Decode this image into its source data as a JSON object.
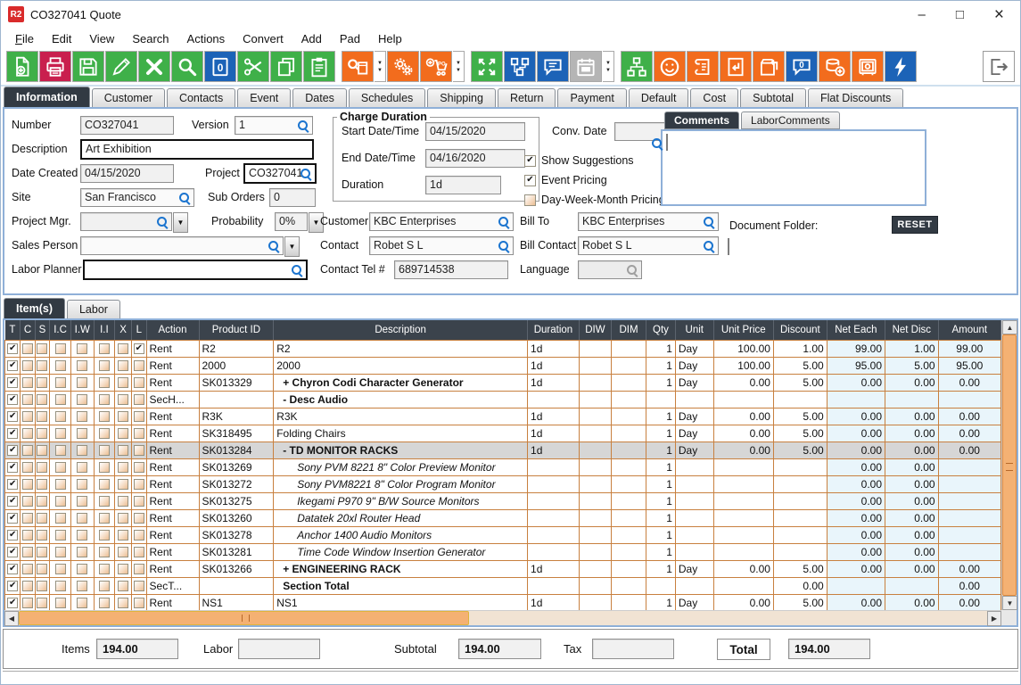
{
  "window": {
    "title": "CO327041 Quote",
    "logo": "R2",
    "controls": [
      "minimize",
      "maximize",
      "close"
    ]
  },
  "icons": {
    "dropdown": "▼",
    "up_arrow": "▲",
    "down_arrow": "▼",
    "left_arrow": "◀",
    "right_arrow": "▶",
    "check": "✔",
    "minimize": "–",
    "maximize": "□",
    "close": "×"
  },
  "menu_bar": {
    "items": [
      "File",
      "Edit",
      "View",
      "Search",
      "Actions",
      "Convert",
      "Add",
      "Pad",
      "Help"
    ]
  },
  "toolbar": {
    "buttons": [
      {
        "name": "new-document",
        "icon": "doc-new",
        "color": "#3fb049"
      },
      {
        "name": "print",
        "icon": "printer",
        "color": "#c91f4e"
      },
      {
        "name": "save",
        "icon": "floppy",
        "color": "#3fb049"
      },
      {
        "name": "edit",
        "icon": "pencil",
        "color": "#3fb049"
      },
      {
        "name": "delete",
        "icon": "x",
        "color": "#3fb049"
      },
      {
        "name": "search",
        "icon": "magnifier",
        "color": "#3fb049"
      },
      {
        "name": "copy-zero",
        "icon": "doc-zero",
        "color": "#1c63b7"
      },
      {
        "name": "cut",
        "icon": "scissors",
        "color": "#3fb049"
      },
      {
        "name": "copy",
        "icon": "copy",
        "color": "#3fb049"
      },
      {
        "name": "paste",
        "icon": "clipboard",
        "color": "#3fb049"
      },
      {
        "name": "search-items",
        "icon": "search-box",
        "color": "#f26c1d",
        "dropdown": true,
        "gap": true
      },
      {
        "name": "settings-gears",
        "icon": "gears",
        "color": "#f26c1d"
      },
      {
        "name": "add-purchase-order",
        "icon": "cart-po",
        "color": "#f26c1d",
        "dropdown": true
      },
      {
        "name": "expand",
        "icon": "expand",
        "color": "#3fb049",
        "gap": true
      },
      {
        "name": "workflow",
        "icon": "flowchart",
        "color": "#1c63b7"
      },
      {
        "name": "comments",
        "icon": "chat",
        "color": "#1c63b7"
      },
      {
        "name": "calendar",
        "icon": "calendar",
        "color": "#b5b5b5",
        "dropdown": true,
        "disabled": true
      },
      {
        "name": "org-tree",
        "icon": "tree",
        "color": "#3fb049",
        "gap": true
      },
      {
        "name": "customer-smiley",
        "icon": "smiley",
        "color": "#f26c1d"
      },
      {
        "name": "notes-scroll",
        "icon": "scroll",
        "color": "#f26c1d"
      },
      {
        "name": "return-note",
        "icon": "note-return",
        "color": "#f26c1d"
      },
      {
        "name": "return-box",
        "icon": "box-return",
        "color": "#f26c1d"
      },
      {
        "name": "chat-zero",
        "icon": "chat-zero",
        "color": "#1c63b7"
      },
      {
        "name": "add-currency",
        "icon": "coins",
        "color": "#f26c1d"
      },
      {
        "name": "vault",
        "icon": "safe",
        "color": "#f26c1d"
      },
      {
        "name": "flash",
        "icon": "lightning",
        "color": "#1c63b7"
      }
    ]
  },
  "main_tabs": {
    "active": "Information",
    "items": [
      "Information",
      "Customer",
      "Contacts",
      "Event",
      "Dates",
      "Schedules",
      "Shipping",
      "Return",
      "Payment",
      "Default",
      "Cost",
      "Subtotal",
      "Flat Discounts"
    ]
  },
  "form": {
    "number_label": "Number",
    "number": "CO327041",
    "version_label": "Version",
    "version": "1",
    "description_label": "Description",
    "description": "Art Exhibition",
    "date_created_label": "Date Created",
    "date_created": "04/15/2020",
    "project_label": "Project",
    "project": "CO327041",
    "site_label": "Site",
    "site": "San Francisco",
    "sub_orders_label": "Sub Orders",
    "sub_orders": "0",
    "project_mgr_label": "Project Mgr.",
    "project_mgr": "",
    "probability_label": "Probability",
    "probability": "0%",
    "sales_person_label": "Sales Person",
    "sales_person": "",
    "labor_planner_label": "Labor Planner",
    "labor_planner": "",
    "charge_duration_legend": "Charge Duration",
    "start_label": "Start Date/Time",
    "start": "04/15/2020",
    "end_label": "End Date/Time",
    "end": "04/16/2020",
    "duration_label": "Duration",
    "duration": "1d",
    "conv_date_label": "Conv. Date",
    "conv_date": "",
    "checkboxes": [
      {
        "label": "Show Suggestions",
        "checked": true
      },
      {
        "label": "Event Pricing",
        "checked": true
      },
      {
        "label": "Day-Week-Month Pricing",
        "checked": false
      }
    ],
    "customer_label": "Customer",
    "customer": "KBC Enterprises",
    "bill_to_label": "Bill To",
    "bill_to": "KBC Enterprises",
    "contact_label": "Contact",
    "contact": "Robet S L",
    "bill_contact_label": "Bill Contact",
    "bill_contact": "Robet S L",
    "contact_tel_label": "Contact Tel #",
    "contact_tel": "689714538",
    "language_label": "Language",
    "language": ""
  },
  "comments_panel": {
    "tabs": [
      "Comments",
      "LaborComments"
    ],
    "active": "Comments",
    "text": "",
    "document_folder_label": "Document Folder:",
    "reset_label": "RESET",
    "document_folder": ""
  },
  "items_panel": {
    "tabs": [
      "Item(s)",
      "Labor"
    ],
    "active": "Item(s)"
  },
  "table": {
    "check_columns": [
      "T",
      "C",
      "S",
      "I.C",
      "I.W",
      "I.I",
      "X",
      "L"
    ],
    "columns": [
      "Action",
      "Product ID",
      "Description",
      "Duration",
      "DIW",
      "DIM",
      "Qty",
      "Unit",
      "Unit Price",
      "Discount",
      "Net Each",
      "Net Disc",
      "Amount"
    ],
    "rows": [
      {
        "checks": [
          "T",
          "L"
        ],
        "action": "Rent",
        "product_id": "R2",
        "description": "R2",
        "style": "n",
        "indent": 0,
        "duration": "1d",
        "diw": "",
        "dim": "",
        "qty": "1",
        "unit": "Day",
        "unit_price": "100.00",
        "discount": "1.00",
        "net_each": "99.00",
        "net_disc": "1.00",
        "amount": "99.00",
        "selected": false
      },
      {
        "checks": [
          "T"
        ],
        "action": "Rent",
        "product_id": "2000",
        "description": "2000",
        "style": "n",
        "indent": 0,
        "duration": "1d",
        "diw": "",
        "dim": "",
        "qty": "1",
        "unit": "Day",
        "unit_price": "100.00",
        "discount": "5.00",
        "net_each": "95.00",
        "net_disc": "5.00",
        "amount": "95.00",
        "selected": false
      },
      {
        "checks": [
          "T"
        ],
        "action": "Rent",
        "product_id": "SK013329",
        "description": "+  Chyron Codi Character Generator",
        "style": "b",
        "indent": 1,
        "duration": "1d",
        "diw": "",
        "dim": "",
        "qty": "1",
        "unit": "Day",
        "unit_price": "0.00",
        "discount": "5.00",
        "net_each": "0.00",
        "net_disc": "0.00",
        "amount": "0.00",
        "selected": false
      },
      {
        "checks": [
          "T"
        ],
        "action": "SecH...",
        "product_id": "",
        "description": "-  Desc Audio",
        "style": "b",
        "indent": 1,
        "duration": "",
        "diw": "",
        "dim": "",
        "qty": "",
        "unit": "",
        "unit_price": "",
        "discount": "",
        "net_each": "",
        "net_disc": "",
        "amount": "",
        "selected": false
      },
      {
        "checks": [
          "T"
        ],
        "action": "Rent",
        "product_id": "R3K",
        "description": "R3K",
        "style": "n",
        "indent": 0,
        "duration": "1d",
        "diw": "",
        "dim": "",
        "qty": "1",
        "unit": "Day",
        "unit_price": "0.00",
        "discount": "5.00",
        "net_each": "0.00",
        "net_disc": "0.00",
        "amount": "0.00",
        "selected": false
      },
      {
        "checks": [
          "T"
        ],
        "action": "Rent",
        "product_id": "SK318495",
        "description": "Folding Chairs",
        "style": "n",
        "indent": 0,
        "duration": "1d",
        "diw": "",
        "dim": "",
        "qty": "1",
        "unit": "Day",
        "unit_price": "0.00",
        "discount": "5.00",
        "net_each": "0.00",
        "net_disc": "0.00",
        "amount": "0.00",
        "selected": false
      },
      {
        "checks": [
          "T"
        ],
        "action": "Rent",
        "product_id": "SK013284",
        "description": "-  TD MONITOR RACKS",
        "style": "b",
        "indent": 1,
        "duration": "1d",
        "diw": "",
        "dim": "",
        "qty": "1",
        "unit": "Day",
        "unit_price": "0.00",
        "discount": "5.00",
        "net_each": "0.00",
        "net_disc": "0.00",
        "amount": "0.00",
        "selected": true
      },
      {
        "checks": [
          "T"
        ],
        "action": "Rent",
        "product_id": "SK013269",
        "description": "Sony PVM 8221 8\" Color Preview Monitor",
        "style": "i",
        "indent": 2,
        "duration": "",
        "diw": "",
        "dim": "",
        "qty": "1",
        "unit": "",
        "unit_price": "",
        "discount": "",
        "net_each": "0.00",
        "net_disc": "0.00",
        "amount": "",
        "selected": false
      },
      {
        "checks": [
          "T"
        ],
        "action": "Rent",
        "product_id": "SK013272",
        "description": "Sony PVM8221 8\" Color Program Monitor",
        "style": "i",
        "indent": 2,
        "duration": "",
        "diw": "",
        "dim": "",
        "qty": "1",
        "unit": "",
        "unit_price": "",
        "discount": "",
        "net_each": "0.00",
        "net_disc": "0.00",
        "amount": "",
        "selected": false
      },
      {
        "checks": [
          "T"
        ],
        "action": "Rent",
        "product_id": "SK013275",
        "description": "Ikegami P970 9\" B/W Source Monitors",
        "style": "i",
        "indent": 2,
        "duration": "",
        "diw": "",
        "dim": "",
        "qty": "1",
        "unit": "",
        "unit_price": "",
        "discount": "",
        "net_each": "0.00",
        "net_disc": "0.00",
        "amount": "",
        "selected": false
      },
      {
        "checks": [
          "T"
        ],
        "action": "Rent",
        "product_id": "SK013260",
        "description": "Datatek 20xl Router Head",
        "style": "i",
        "indent": 2,
        "duration": "",
        "diw": "",
        "dim": "",
        "qty": "1",
        "unit": "",
        "unit_price": "",
        "discount": "",
        "net_each": "0.00",
        "net_disc": "0.00",
        "amount": "",
        "selected": false
      },
      {
        "checks": [
          "T"
        ],
        "action": "Rent",
        "product_id": "SK013278",
        "description": "Anchor 1400 Audio Monitors",
        "style": "i",
        "indent": 2,
        "duration": "",
        "diw": "",
        "dim": "",
        "qty": "1",
        "unit": "",
        "unit_price": "",
        "discount": "",
        "net_each": "0.00",
        "net_disc": "0.00",
        "amount": "",
        "selected": false
      },
      {
        "checks": [
          "T"
        ],
        "action": "Rent",
        "product_id": "SK013281",
        "description": "Time Code Window Insertion Generator",
        "style": "i",
        "indent": 2,
        "duration": "",
        "diw": "",
        "dim": "",
        "qty": "1",
        "unit": "",
        "unit_price": "",
        "discount": "",
        "net_each": "0.00",
        "net_disc": "0.00",
        "amount": "",
        "selected": false
      },
      {
        "checks": [
          "T"
        ],
        "action": "Rent",
        "product_id": "SK013266",
        "description": "+  ENGINEERING RACK",
        "style": "b",
        "indent": 1,
        "duration": "1d",
        "diw": "",
        "dim": "",
        "qty": "1",
        "unit": "Day",
        "unit_price": "0.00",
        "discount": "5.00",
        "net_each": "0.00",
        "net_disc": "0.00",
        "amount": "0.00",
        "selected": false
      },
      {
        "checks": [
          "T"
        ],
        "action": "SecT...",
        "product_id": "",
        "description": "Section Total",
        "style": "b",
        "indent": 1,
        "duration": "",
        "diw": "",
        "dim": "",
        "qty": "",
        "unit": "",
        "unit_price": "",
        "discount": "0.00",
        "net_each": "",
        "net_disc": "",
        "amount": "0.00",
        "selected": false
      },
      {
        "checks": [
          "T"
        ],
        "action": "Rent",
        "product_id": "NS1",
        "description": "NS1",
        "style": "n",
        "indent": 0,
        "duration": "1d",
        "diw": "",
        "dim": "",
        "qty": "1",
        "unit": "Day",
        "unit_price": "0.00",
        "discount": "5.00",
        "net_each": "0.00",
        "net_disc": "0.00",
        "amount": "0.00",
        "selected": false
      }
    ]
  },
  "totals": {
    "items_label": "Items",
    "items": "194.00",
    "labor_label": "Labor",
    "labor": "",
    "subtotal_label": "Subtotal",
    "subtotal": "194.00",
    "tax_label": "Tax",
    "tax": "",
    "total_label": "Total",
    "total": "194.00"
  }
}
